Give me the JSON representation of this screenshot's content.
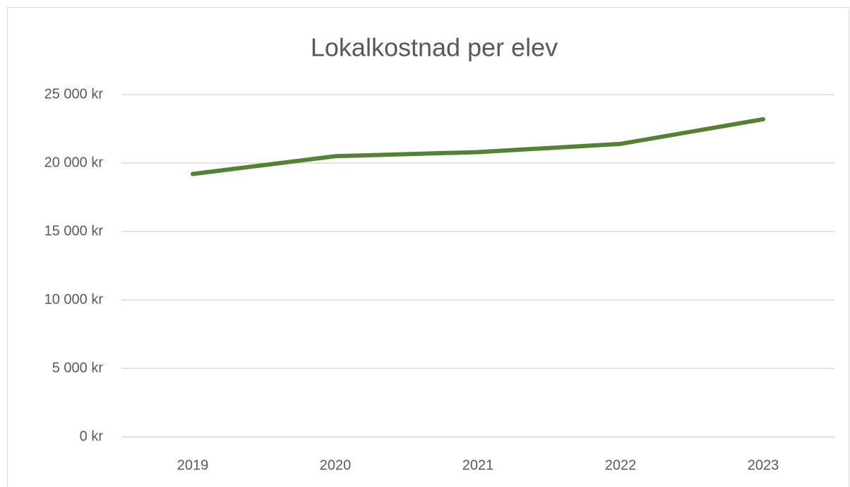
{
  "chart_data": {
    "type": "line",
    "title": "Lokalkostnad per elev",
    "categories": [
      "2019",
      "2020",
      "2021",
      "2022",
      "2023"
    ],
    "series": [
      {
        "name": "Lokalkostnad per elev",
        "color": "#548235",
        "values": [
          19200,
          20500,
          20800,
          21400,
          23200
        ]
      }
    ],
    "ylim": [
      0,
      25000
    ],
    "yticks": [
      {
        "value": 0,
        "label": "0 kr"
      },
      {
        "value": 5000,
        "label": "5 000 kr"
      },
      {
        "value": 10000,
        "label": "10 000 kr"
      },
      {
        "value": 15000,
        "label": "15 000 kr"
      },
      {
        "value": 20000,
        "label": "20 000 kr"
      },
      {
        "value": 25000,
        "label": "25 000 kr"
      }
    ],
    "grid": true
  }
}
